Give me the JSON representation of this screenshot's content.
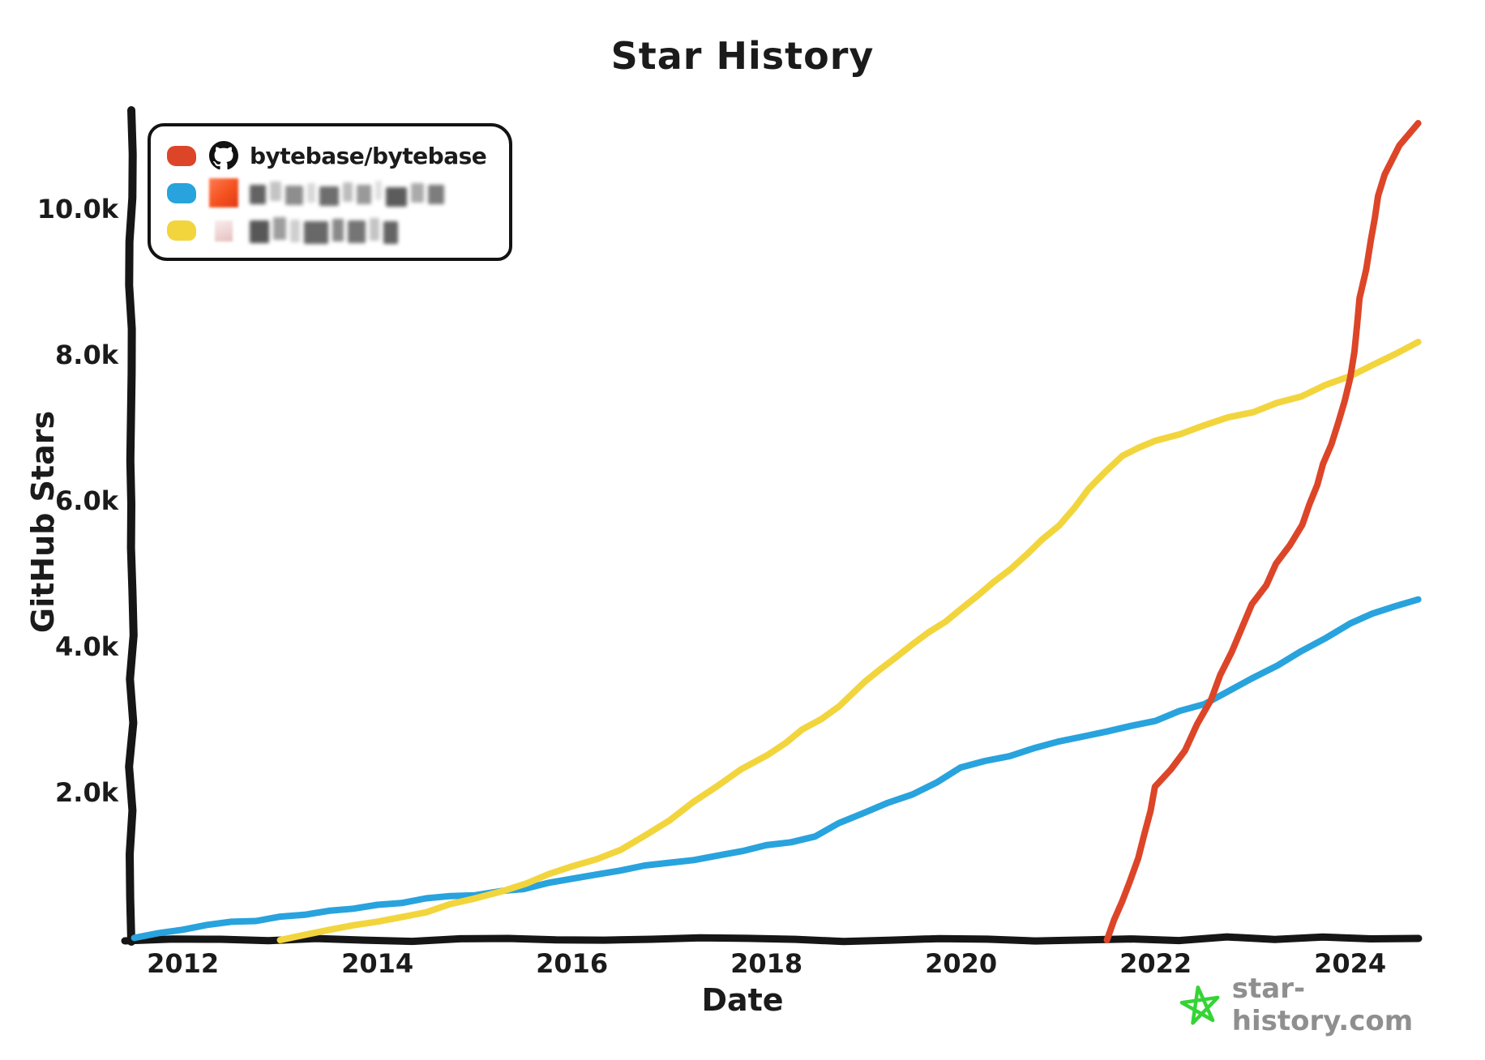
{
  "title": "Star History",
  "axes": {
    "x_label": "Date",
    "y_label": "GitHub Stars",
    "x_ticks": [
      "2012",
      "2014",
      "2016",
      "2018",
      "2020",
      "2022",
      "2024"
    ],
    "y_ticks": [
      "2.0k",
      "4.0k",
      "6.0k",
      "8.0k",
      "10.0k"
    ]
  },
  "legend": {
    "items": [
      {
        "label": "bytebase/bytebase",
        "color": "#dd4528",
        "avatar": "github-logo",
        "redacted": false
      },
      {
        "label": "",
        "color": "#28a3dd",
        "avatar": "redacted-orange-avatar",
        "redacted": true
      },
      {
        "label": "",
        "color": "#f2d53d",
        "avatar": "redacted-pink-avatar",
        "redacted": true
      }
    ]
  },
  "watermark": {
    "text": "star-history.com",
    "icon": "star-doodle-icon"
  },
  "colors": {
    "red": "#dd4528",
    "blue": "#28a3dd",
    "yellow": "#f2d53d",
    "axis": "#161616",
    "watermark_text": "#8f8f8f",
    "star_green": "#35d435"
  },
  "chart_data": {
    "type": "line",
    "title": "Star History",
    "xlabel": "Date",
    "ylabel": "GitHub Stars",
    "x_range": [
      2011.45,
      2024.75
    ],
    "ylim": [
      0,
      11500
    ],
    "x_ticks": [
      2012,
      2014,
      2016,
      2018,
      2020,
      2022,
      2024
    ],
    "y_ticks": [
      2000,
      4000,
      6000,
      8000,
      10000
    ],
    "grid": false,
    "legend_position": "top-left",
    "style": "hand-drawn-xkcd",
    "series": [
      {
        "name": "bytebase/bytebase",
        "color": "#dd4528",
        "points": [
          [
            2021.5,
            0
          ],
          [
            2021.75,
            800
          ],
          [
            2022,
            2100
          ],
          [
            2022.3,
            2600
          ],
          [
            2022.57,
            3300
          ],
          [
            2023,
            4600
          ],
          [
            2023.5,
            5700
          ],
          [
            2023.8,
            6800
          ],
          [
            2024,
            7700
          ],
          [
            2024.1,
            8800
          ],
          [
            2024.2,
            9600
          ],
          [
            2024.35,
            10500
          ],
          [
            2024.5,
            10900
          ],
          [
            2024.7,
            11200
          ]
        ]
      },
      {
        "name": "redacted (blurred legend entry, blue line)",
        "color": "#28a3dd",
        "points": [
          [
            2011.5,
            30
          ],
          [
            2012,
            150
          ],
          [
            2012.5,
            230
          ],
          [
            2013,
            320
          ],
          [
            2013.5,
            400
          ],
          [
            2014,
            480
          ],
          [
            2014.5,
            560
          ],
          [
            2015,
            630
          ],
          [
            2015.3,
            670
          ],
          [
            2015.5,
            720
          ],
          [
            2016,
            850
          ],
          [
            2016.5,
            950
          ],
          [
            2017,
            1060
          ],
          [
            2017.5,
            1170
          ],
          [
            2018,
            1290
          ],
          [
            2018.5,
            1420
          ],
          [
            2019,
            1750
          ],
          [
            2019.5,
            2000
          ],
          [
            2020,
            2350
          ],
          [
            2020.5,
            2520
          ],
          [
            2021,
            2700
          ],
          [
            2021.5,
            2850
          ],
          [
            2022,
            3000
          ],
          [
            2022.5,
            3250
          ],
          [
            2023,
            3600
          ],
          [
            2023.5,
            3950
          ],
          [
            2024,
            4350
          ],
          [
            2024.7,
            4670
          ]
        ]
      },
      {
        "name": "redacted (blurred legend entry, yellow line)",
        "color": "#f2d53d",
        "points": [
          [
            2013,
            0
          ],
          [
            2013.5,
            120
          ],
          [
            2014,
            260
          ],
          [
            2014.5,
            400
          ],
          [
            2015,
            560
          ],
          [
            2015.3,
            670
          ],
          [
            2016,
            1000
          ],
          [
            2016.5,
            1250
          ],
          [
            2017,
            1650
          ],
          [
            2017.5,
            2100
          ],
          [
            2018,
            2550
          ],
          [
            2018.75,
            3200
          ],
          [
            2019,
            3550
          ],
          [
            2019.5,
            4050
          ],
          [
            2020,
            4550
          ],
          [
            2020.5,
            5100
          ],
          [
            2021,
            5700
          ],
          [
            2021.65,
            6650
          ],
          [
            2022,
            6850
          ],
          [
            2022.5,
            7050
          ],
          [
            2023,
            7250
          ],
          [
            2023.5,
            7450
          ],
          [
            2024,
            7750
          ],
          [
            2024.7,
            8200
          ]
        ]
      }
    ]
  }
}
